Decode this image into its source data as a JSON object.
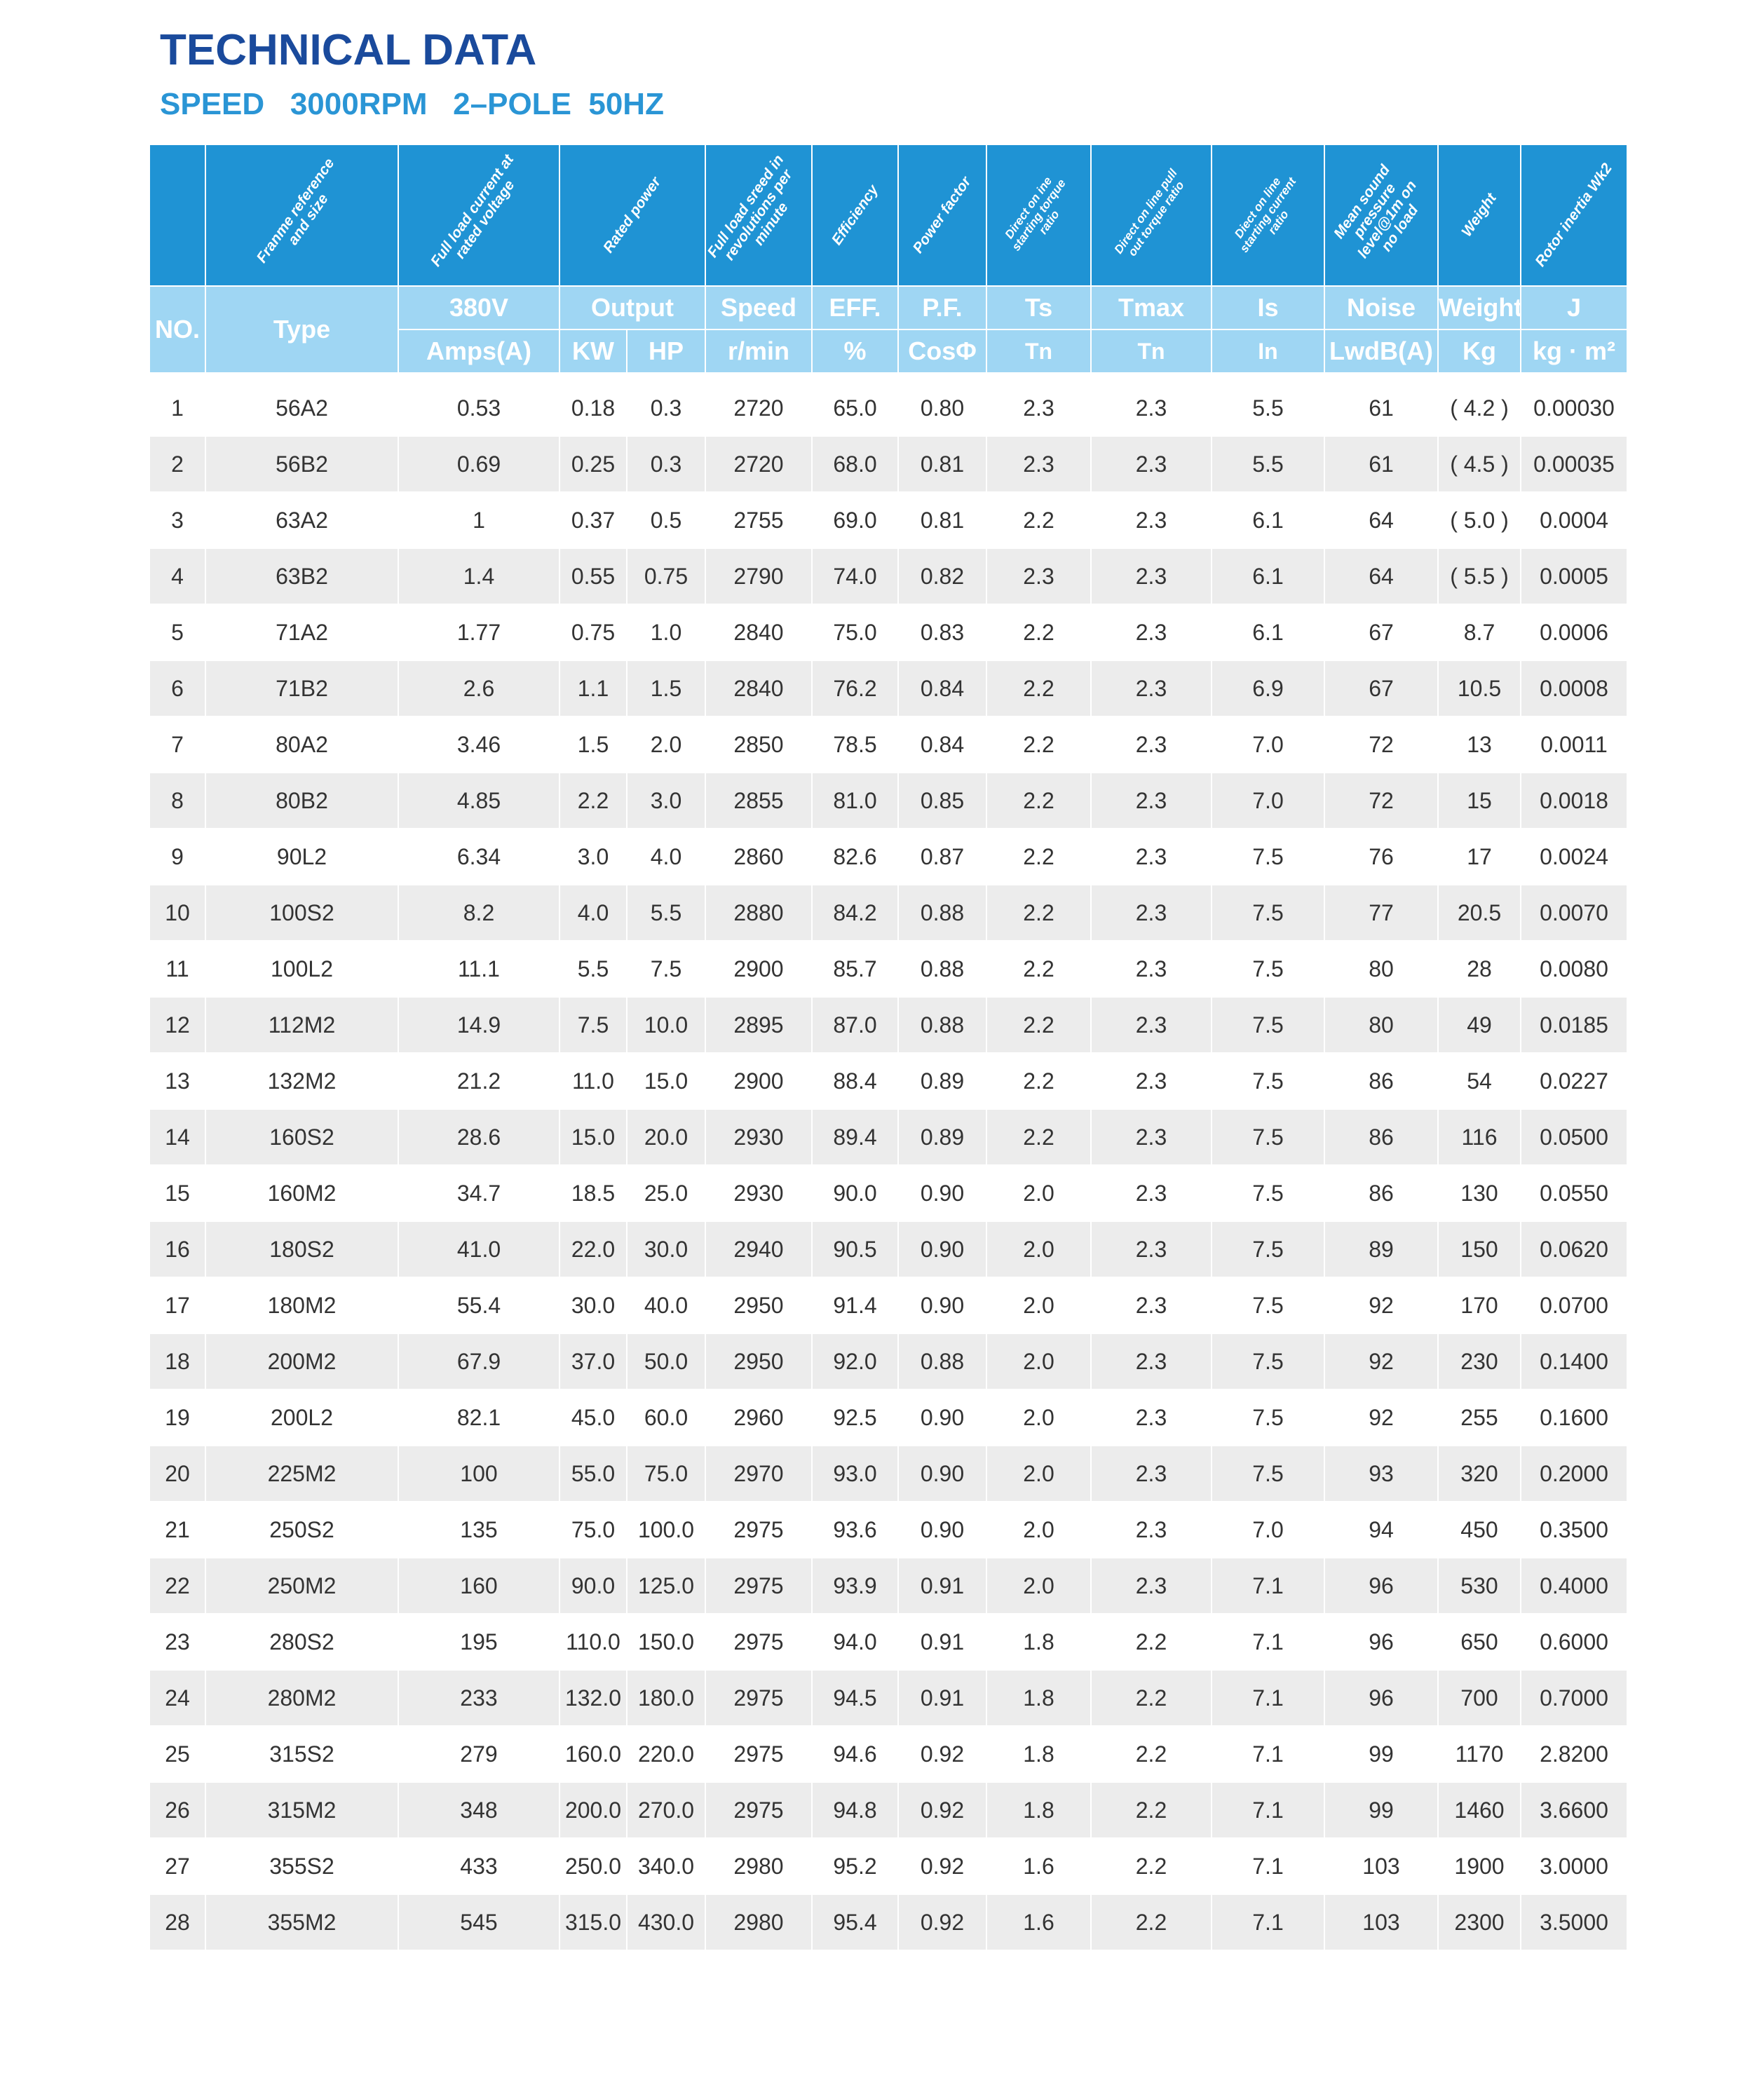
{
  "title": "TECHNICAL DATA",
  "subtitle": "SPEED   3000RPM   2–POLE  50HZ",
  "colors": {
    "title": "#1a4a9c",
    "subtitle": "#2a95d5",
    "header_dark": "#1f93d4",
    "header_light": "#9fd6f3",
    "row_alt": "#ececec"
  },
  "header": {
    "descriptions": [
      "",
      "Franme reference and size",
      "Full load current at rated voltage",
      "Rated power",
      "Full load sreed in revolutions per minute",
      "Efficiency",
      "Power factor",
      "Direct on ine starting torque ratio",
      "Direct on line pull out torque ratio",
      "Diect on line starting current ratio",
      "Mean sound pressure level@1m on no load",
      "Weight",
      "Rotor inertia Wk2"
    ],
    "no": "NO.",
    "type": "Type",
    "row1": [
      "380V",
      "Output",
      "Speed",
      "EFF.",
      "P.F.",
      "Ts",
      "Tmax",
      "Is",
      "Noise",
      "Weight",
      "J"
    ],
    "row2": [
      "Amps(A)",
      "KW",
      "HP",
      "r/min",
      "%",
      "CosΦ",
      "Tn",
      "Tn",
      "In",
      "LwdB(A)",
      "Kg",
      "kg · m²"
    ]
  },
  "rows": [
    [
      "1",
      "56A2",
      "0.53",
      "0.18",
      "0.3",
      "2720",
      "65.0",
      "0.80",
      "2.3",
      "2.3",
      "5.5",
      "61",
      "( 4.2 )",
      "0.00030"
    ],
    [
      "2",
      "56B2",
      "0.69",
      "0.25",
      "0.3",
      "2720",
      "68.0",
      "0.81",
      "2.3",
      "2.3",
      "5.5",
      "61",
      "( 4.5 )",
      "0.00035"
    ],
    [
      "3",
      "63A2",
      "1",
      "0.37",
      "0.5",
      "2755",
      "69.0",
      "0.81",
      "2.2",
      "2.3",
      "6.1",
      "64",
      "( 5.0 )",
      "0.0004"
    ],
    [
      "4",
      "63B2",
      "1.4",
      "0.55",
      "0.75",
      "2790",
      "74.0",
      "0.82",
      "2.3",
      "2.3",
      "6.1",
      "64",
      "( 5.5 )",
      "0.0005"
    ],
    [
      "5",
      "71A2",
      "1.77",
      "0.75",
      "1.0",
      "2840",
      "75.0",
      "0.83",
      "2.2",
      "2.3",
      "6.1",
      "67",
      "8.7",
      "0.0006"
    ],
    [
      "6",
      "71B2",
      "2.6",
      "1.1",
      "1.5",
      "2840",
      "76.2",
      "0.84",
      "2.2",
      "2.3",
      "6.9",
      "67",
      "10.5",
      "0.0008"
    ],
    [
      "7",
      "80A2",
      "3.46",
      "1.5",
      "2.0",
      "2850",
      "78.5",
      "0.84",
      "2.2",
      "2.3",
      "7.0",
      "72",
      "13",
      "0.0011"
    ],
    [
      "8",
      "80B2",
      "4.85",
      "2.2",
      "3.0",
      "2855",
      "81.0",
      "0.85",
      "2.2",
      "2.3",
      "7.0",
      "72",
      "15",
      "0.0018"
    ],
    [
      "9",
      "90L2",
      "6.34",
      "3.0",
      "4.0",
      "2860",
      "82.6",
      "0.87",
      "2.2",
      "2.3",
      "7.5",
      "76",
      "17",
      "0.0024"
    ],
    [
      "10",
      "100S2",
      "8.2",
      "4.0",
      "5.5",
      "2880",
      "84.2",
      "0.88",
      "2.2",
      "2.3",
      "7.5",
      "77",
      "20.5",
      "0.0070"
    ],
    [
      "11",
      "100L2",
      "11.1",
      "5.5",
      "7.5",
      "2900",
      "85.7",
      "0.88",
      "2.2",
      "2.3",
      "7.5",
      "80",
      "28",
      "0.0080"
    ],
    [
      "12",
      "112M2",
      "14.9",
      "7.5",
      "10.0",
      "2895",
      "87.0",
      "0.88",
      "2.2",
      "2.3",
      "7.5",
      "80",
      "49",
      "0.0185"
    ],
    [
      "13",
      "132M2",
      "21.2",
      "11.0",
      "15.0",
      "2900",
      "88.4",
      "0.89",
      "2.2",
      "2.3",
      "7.5",
      "86",
      "54",
      "0.0227"
    ],
    [
      "14",
      "160S2",
      "28.6",
      "15.0",
      "20.0",
      "2930",
      "89.4",
      "0.89",
      "2.2",
      "2.3",
      "7.5",
      "86",
      "116",
      "0.0500"
    ],
    [
      "15",
      "160M2",
      "34.7",
      "18.5",
      "25.0",
      "2930",
      "90.0",
      "0.90",
      "2.0",
      "2.3",
      "7.5",
      "86",
      "130",
      "0.0550"
    ],
    [
      "16",
      "180S2",
      "41.0",
      "22.0",
      "30.0",
      "2940",
      "90.5",
      "0.90",
      "2.0",
      "2.3",
      "7.5",
      "89",
      "150",
      "0.0620"
    ],
    [
      "17",
      "180M2",
      "55.4",
      "30.0",
      "40.0",
      "2950",
      "91.4",
      "0.90",
      "2.0",
      "2.3",
      "7.5",
      "92",
      "170",
      "0.0700"
    ],
    [
      "18",
      "200M2",
      "67.9",
      "37.0",
      "50.0",
      "2950",
      "92.0",
      "0.88",
      "2.0",
      "2.3",
      "7.5",
      "92",
      "230",
      "0.1400"
    ],
    [
      "19",
      "200L2",
      "82.1",
      "45.0",
      "60.0",
      "2960",
      "92.5",
      "0.90",
      "2.0",
      "2.3",
      "7.5",
      "92",
      "255",
      "0.1600"
    ],
    [
      "20",
      "225M2",
      "100",
      "55.0",
      "75.0",
      "2970",
      "93.0",
      "0.90",
      "2.0",
      "2.3",
      "7.5",
      "93",
      "320",
      "0.2000"
    ],
    [
      "21",
      "250S2",
      "135",
      "75.0",
      "100.0",
      "2975",
      "93.6",
      "0.90",
      "2.0",
      "2.3",
      "7.0",
      "94",
      "450",
      "0.3500"
    ],
    [
      "22",
      "250M2",
      "160",
      "90.0",
      "125.0",
      "2975",
      "93.9",
      "0.91",
      "2.0",
      "2.3",
      "7.1",
      "96",
      "530",
      "0.4000"
    ],
    [
      "23",
      "280S2",
      "195",
      "110.0",
      "150.0",
      "2975",
      "94.0",
      "0.91",
      "1.8",
      "2.2",
      "7.1",
      "96",
      "650",
      "0.6000"
    ],
    [
      "24",
      "280M2",
      "233",
      "132.0",
      "180.0",
      "2975",
      "94.5",
      "0.91",
      "1.8",
      "2.2",
      "7.1",
      "96",
      "700",
      "0.7000"
    ],
    [
      "25",
      "315S2",
      "279",
      "160.0",
      "220.0",
      "2975",
      "94.6",
      "0.92",
      "1.8",
      "2.2",
      "7.1",
      "99",
      "1170",
      "2.8200"
    ],
    [
      "26",
      "315M2",
      "348",
      "200.0",
      "270.0",
      "2975",
      "94.8",
      "0.92",
      "1.8",
      "2.2",
      "7.1",
      "99",
      "1460",
      "3.6600"
    ],
    [
      "27",
      "355S2",
      "433",
      "250.0",
      "340.0",
      "2980",
      "95.2",
      "0.92",
      "1.6",
      "2.2",
      "7.1",
      "103",
      "1900",
      "3.0000"
    ],
    [
      "28",
      "355M2",
      "545",
      "315.0",
      "430.0",
      "2980",
      "95.4",
      "0.92",
      "1.6",
      "2.2",
      "7.1",
      "103",
      "2300",
      "3.5000"
    ]
  ]
}
